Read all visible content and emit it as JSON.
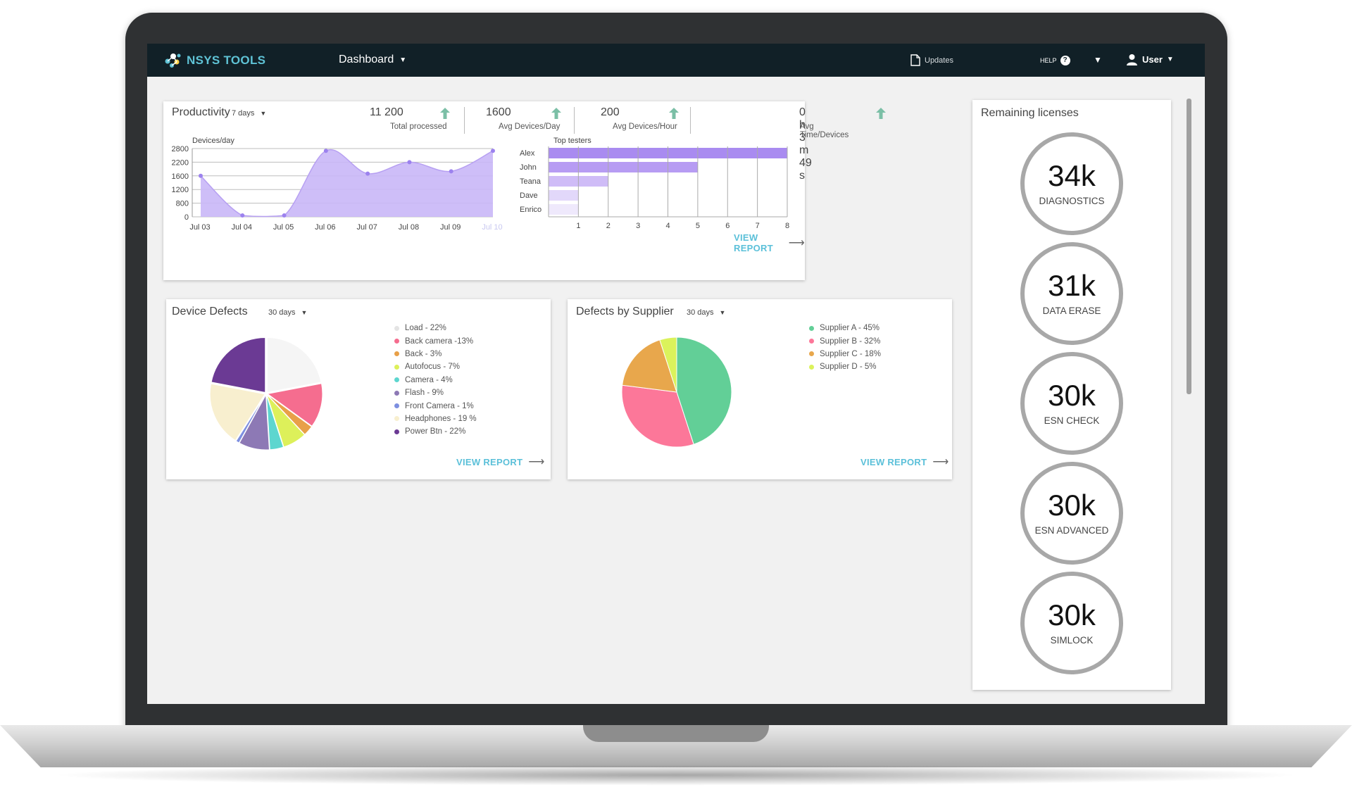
{
  "header": {
    "brand": "NSYS TOOLS",
    "nav_title": "Dashboard",
    "updates_label": "Updates",
    "help_label": "HELP",
    "user_label": "User"
  },
  "productivity": {
    "title": "Productivity",
    "period": "7 days",
    "stats": [
      {
        "value": "11 200",
        "label": "Total processed"
      },
      {
        "value": "1600",
        "label": "Avg Devices/Day"
      },
      {
        "value": "200",
        "label": "Avg Devices/Hour"
      },
      {
        "value": "0 h 3 m 49 s",
        "label": "Avg Time/Devices"
      }
    ],
    "view_report": "VIEW REPORT"
  },
  "device_defects": {
    "title": "Device Defects",
    "period": "30 days",
    "legend": [
      {
        "label": "Load - 22%",
        "color": "#f5f5f5"
      },
      {
        "label": "Back camera -13%",
        "color": "#f56d8f"
      },
      {
        "label": "Back - 3%",
        "color": "#e8a048"
      },
      {
        "label": "Autofocus - 7%",
        "color": "#ddf05a"
      },
      {
        "label": "Camera - 4%",
        "color": "#5dd6cf"
      },
      {
        "label": "Flash - 9%",
        "color": "#8d79b5"
      },
      {
        "label": "Front Camera - 1%",
        "color": "#7d8fe0"
      },
      {
        "label": "Headphones - 19 %",
        "color": "#f8efcf"
      },
      {
        "label": "Power Btn - 22%",
        "color": "#6b3a94"
      }
    ],
    "view_report": "VIEW REPORT"
  },
  "defects_by_supplier": {
    "title": "Defects by Supplier",
    "period": "30 days",
    "legend": [
      {
        "label": "Supplier A - 45%",
        "color": "#62cf97"
      },
      {
        "label": "Supplier B - 32%",
        "color": "#fc7799"
      },
      {
        "label": "Supplier C - 18%",
        "color": "#e8a74c"
      },
      {
        "label": "Supplier D - 5%",
        "color": "#dbf25b"
      }
    ],
    "view_report": "VIEW REPORT"
  },
  "licenses": {
    "title": "Remaining licenses",
    "items": [
      {
        "value": "34k",
        "label": "DIAGNOSTICS"
      },
      {
        "value": "31k",
        "label": "DATA ERASE"
      },
      {
        "value": "30k",
        "label": "ESN CHECK"
      },
      {
        "value": "30k",
        "label": "ESN ADVANCED"
      },
      {
        "value": "30k",
        "label": "SIMLOCK"
      }
    ]
  },
  "chart_data": [
    {
      "type": "area",
      "ylabel": "Devices/day",
      "x": [
        "Jul 03",
        "Jul 04",
        "Jul 05",
        "Jul 06",
        "Jul 07",
        "Jul 08",
        "Jul 09",
        "Jul 10"
      ],
      "y_ticks": [
        "0",
        "800",
        "1200",
        "1600",
        "2200",
        "2800"
      ],
      "series": [
        {
          "values": [
            1600,
            80,
            80,
            2700,
            1700,
            2200,
            1800,
            2700
          ]
        }
      ],
      "color": "#c9b7f7",
      "grid": true
    },
    {
      "type": "bar",
      "title": "Top testers",
      "orientation": "horizontal",
      "categories": [
        "Alex",
        "John",
        "Teana",
        "Dave",
        "Enrico"
      ],
      "values": [
        8,
        5,
        2,
        1,
        1
      ],
      "x_ticks": [
        "1",
        "2",
        "3",
        "4",
        "5",
        "6",
        "7",
        "8"
      ],
      "xlim": [
        0,
        8
      ]
    },
    {
      "type": "pie",
      "labels": [
        "Load",
        "Back camera",
        "Back",
        "Autofocus",
        "Camera",
        "Flash",
        "Front Camera",
        "Headphones",
        "Power Btn"
      ],
      "values": [
        22,
        13,
        3,
        7,
        4,
        9,
        1,
        19,
        22
      ]
    },
    {
      "type": "pie",
      "labels": [
        "Supplier A",
        "Supplier B",
        "Supplier C",
        "Supplier D"
      ],
      "values": [
        45,
        32,
        18,
        5
      ]
    }
  ]
}
